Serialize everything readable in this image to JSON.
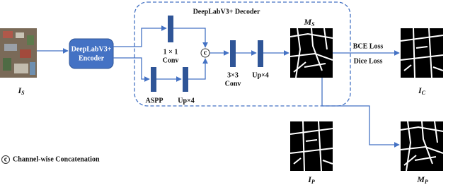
{
  "decoder": {
    "title": "DeepLabV3+ Decoder"
  },
  "encoder": {
    "line1": "DeepLabV3+",
    "line2": "Encoder"
  },
  "blocks": {
    "conv1x1": {
      "line1": "1 × 1",
      "line2": "Conv"
    },
    "aspp": {
      "label": "ASPP"
    },
    "up1": {
      "label": "Up×4"
    },
    "concat": {
      "label": "c"
    },
    "conv3x3": {
      "line1": "3×3",
      "line2": "Conv"
    },
    "up2": {
      "label": "Up×4"
    }
  },
  "images": {
    "input": {
      "main": "I",
      "sub": "S"
    },
    "prediction": {
      "main": "M",
      "sub": "S"
    },
    "target": {
      "main": "I",
      "sub": "C"
    },
    "prior": {
      "main": "I",
      "sub": "P"
    },
    "prior_mask": {
      "main": "M",
      "sub": "P"
    }
  },
  "losses": {
    "bce": "BCE Loss",
    "dice": "Dice Loss"
  },
  "legend": {
    "symbol": "c",
    "text": "Channel-wise Concatenation"
  }
}
